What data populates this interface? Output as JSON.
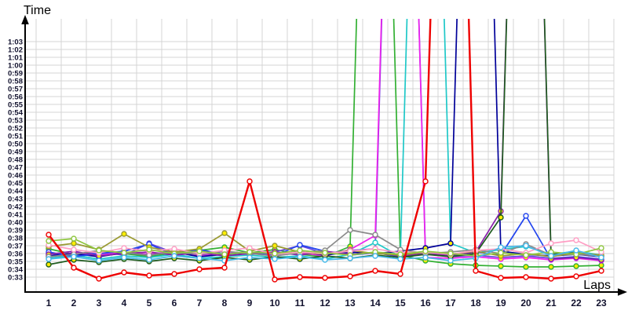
{
  "figure": {
    "y_axis_title": "Time",
    "x_axis_title": "Laps",
    "background_color": "#ffffff",
    "grid_color": "#d4d4d4",
    "axis_color": "#000000",
    "tick_label_color": "#12122e"
  },
  "chart_data": {
    "type": "line",
    "title": "",
    "xlabel": "Laps",
    "ylabel": "Time",
    "x": [
      1,
      2,
      3,
      4,
      5,
      6,
      7,
      8,
      9,
      10,
      11,
      12,
      13,
      14,
      15,
      16,
      17,
      18,
      19,
      20,
      21,
      22,
      23
    ],
    "x_tick_labels": [
      "1",
      "2",
      "3",
      "4",
      "5",
      "6",
      "7",
      "8",
      "9",
      "10",
      "11",
      "12",
      "13",
      "14",
      "15",
      "16",
      "17",
      "18",
      "19",
      "20",
      "21",
      "22",
      "23"
    ],
    "y_tick_labels": [
      "1:03",
      "1:02",
      "1:01",
      "1:00",
      "0:59",
      "0:58",
      "0:57",
      "0:56",
      "0:55",
      "0:54",
      "0:53",
      "0:52",
      "0:51",
      "0:50",
      "0:49",
      "0:48",
      "0:47",
      "0:46",
      "0:45",
      "0:44",
      "0:43",
      "0:42",
      "0:41",
      "0:40",
      "0:39",
      "0:38",
      "0:37",
      "0:36",
      "0:35",
      "0:34",
      "0:33"
    ],
    "ylim_seconds": [
      33,
      63
    ],
    "grid": true,
    "legend": "none",
    "off_scale_value_seconds": 150,
    "series": [
      {
        "name": "green",
        "color": "#33b033",
        "marker_fill": "#ffee00",
        "line_width": 1.7,
        "values": [
          36.6,
          35.9,
          36.3,
          36.0,
          35.6,
          36.1,
          36.4,
          36.8,
          36.1,
          36.5,
          35.9,
          35.6,
          36.9,
          150,
          35.8,
          35.1,
          34.7,
          34.5,
          34.4,
          34.3,
          34.3,
          34.4,
          34.5
        ]
      },
      {
        "name": "blue-violet",
        "color": "#6644dd",
        "marker_fill": "#ffee00",
        "line_width": 1.7,
        "values": [
          36.0,
          35.7,
          36.2,
          35.8,
          37.3,
          36.1,
          35.8,
          36.3,
          35.9,
          36.2,
          37.0,
          36.0,
          36.4,
          36.6,
          150,
          36.0,
          35.6,
          35.8,
          35.5,
          35.7,
          35.4,
          35.6,
          35.3
        ]
      },
      {
        "name": "magenta",
        "color": "#ee22ee",
        "marker_fill": "#ffee00",
        "line_width": 1.7,
        "values": [
          35.6,
          36.1,
          35.8,
          36.2,
          35.9,
          36.3,
          35.7,
          36.0,
          36.2,
          35.8,
          36.1,
          35.7,
          36.5,
          38.3,
          150,
          35.5,
          35.4,
          35.6,
          35.3,
          35.5,
          35.2,
          35.4,
          35.1
        ]
      },
      {
        "name": "cyan",
        "color": "#1fc8c8",
        "marker_fill": "#ffffff",
        "line_width": 1.7,
        "values": [
          35.4,
          35.8,
          35.3,
          35.7,
          35.5,
          35.9,
          35.4,
          35.6,
          35.8,
          35.5,
          35.7,
          35.3,
          35.9,
          37.4,
          35.6,
          150,
          37.3,
          36.1,
          36.5,
          36.9,
          35.9,
          36.3,
          35.8
        ]
      },
      {
        "name": "navy",
        "color": "#000099",
        "marker_fill": "#ffee00",
        "line_width": 1.7,
        "values": [
          35.7,
          36.0,
          35.6,
          36.1,
          35.8,
          36.2,
          35.6,
          35.9,
          36.1,
          35.7,
          36.3,
          35.8,
          36.2,
          36.0,
          36.3,
          36.7,
          37.3,
          150,
          36.3,
          35.9,
          35.7,
          35.9,
          35.6
        ]
      },
      {
        "name": "blue",
        "color": "#2244ee",
        "marker_fill": "#ffffff",
        "line_width": 1.7,
        "values": [
          36.2,
          35.6,
          36.0,
          36.3,
          37.2,
          35.8,
          36.5,
          35.9,
          36.2,
          35.7,
          37.1,
          36.3,
          35.8,
          36.1,
          35.6,
          36.0,
          35.7,
          36.2,
          35.8,
          40.8,
          35.3,
          35.6,
          35.2
        ]
      },
      {
        "name": "purple",
        "color": "#8822aa",
        "marker_fill": "#ffee00",
        "line_width": 1.7,
        "values": [
          35.9,
          36.3,
          35.7,
          36.0,
          36.2,
          35.8,
          36.1,
          35.7,
          36.0,
          36.2,
          35.8,
          36.3,
          35.9,
          36.1,
          35.7,
          36.0,
          35.8,
          36.2,
          41.4,
          150,
          35.3,
          35.5,
          35.2
        ]
      },
      {
        "name": "dark-green",
        "color": "#1f5c1f",
        "marker_fill": "#ffee00",
        "line_width": 1.7,
        "values": [
          34.6,
          35.2,
          34.9,
          35.3,
          35.0,
          35.4,
          35.1,
          35.5,
          35.2,
          35.6,
          35.3,
          35.7,
          35.4,
          35.8,
          35.5,
          35.9,
          35.6,
          36.0,
          40.6,
          150,
          35.9,
          36.1,
          35.7
        ]
      },
      {
        "name": "gray",
        "color": "#8a8a8a",
        "marker_fill": "#ffffff",
        "line_width": 1.7,
        "values": [
          35.6,
          35.9,
          36.4,
          36.1,
          35.8,
          36.2,
          35.9,
          36.3,
          36.0,
          35.7,
          36.1,
          36.4,
          39.0,
          38.4,
          36.5,
          36.0,
          36.2,
          36.5,
          36.0,
          37.2,
          35.8,
          35.9,
          35.7
        ]
      },
      {
        "name": "olive",
        "color": "#9a9a33",
        "marker_fill": "#ffee00",
        "line_width": 1.7,
        "values": [
          36.9,
          37.3,
          36.5,
          38.5,
          36.8,
          36.2,
          36.6,
          38.6,
          36.3,
          37.0,
          36.2,
          35.9,
          36.4,
          36.0,
          35.8,
          36.2,
          35.9,
          36.3,
          35.7,
          36.0,
          35.6,
          36.1,
          35.8
        ]
      },
      {
        "name": "pink",
        "color": "#ff9ec4",
        "marker_fill": "#ffffff",
        "line_width": 1.7,
        "values": [
          37.1,
          36.5,
          36.1,
          36.7,
          36.3,
          36.6,
          36.0,
          36.4,
          36.7,
          35.9,
          36.2,
          36.0,
          36.3,
          36.6,
          36.1,
          36.2,
          35.9,
          36.4,
          36.6,
          36.1,
          37.3,
          37.7,
          36.2
        ]
      },
      {
        "name": "light-green",
        "color": "#8ec63f",
        "marker_fill": "#ffffff",
        "line_width": 1.7,
        "values": [
          37.6,
          37.9,
          36.4,
          36.1,
          36.5,
          36.0,
          36.3,
          35.9,
          36.2,
          36.0,
          36.4,
          36.1,
          35.8,
          36.2,
          35.9,
          36.3,
          36.0,
          35.7,
          36.1,
          35.8,
          36.2,
          35.9,
          36.7
        ]
      },
      {
        "name": "sky-blue",
        "color": "#45b8e8",
        "marker_fill": "#ffffff",
        "line_width": 1.7,
        "values": [
          35.3,
          35.6,
          35.1,
          35.5,
          35.2,
          35.7,
          35.4,
          35.1,
          35.5,
          35.3,
          35.6,
          35.2,
          35.4,
          35.7,
          35.3,
          35.5,
          35.1,
          35.4,
          36.8,
          37.0,
          35.7,
          36.4,
          35.5
        ]
      },
      {
        "name": "red",
        "color": "#ee0000",
        "marker_fill": "#ffffff",
        "line_width": 2.4,
        "values": [
          38.4,
          34.2,
          32.8,
          33.6,
          33.2,
          33.4,
          34.0,
          34.2,
          45.2,
          32.7,
          33.0,
          32.9,
          33.1,
          33.8,
          33.4,
          45.2,
          150,
          33.8,
          32.9,
          33.0,
          32.8,
          33.1,
          33.8
        ]
      }
    ]
  }
}
